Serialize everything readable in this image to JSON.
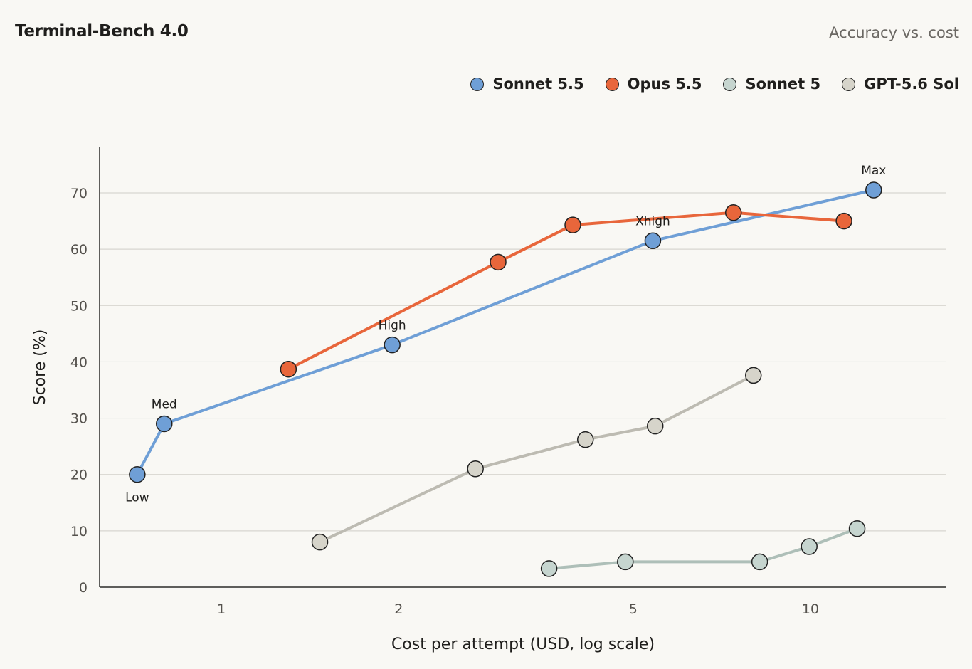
{
  "title": "Terminal-Bench 4.0",
  "subtitle": "Accuracy vs. cost",
  "chart_data": {
    "type": "line",
    "title": "Terminal-Bench 4.0",
    "subtitle": "Accuracy vs. cost",
    "xlabel": "Cost per attempt (USD, log scale)",
    "ylabel": "Score (%)",
    "xscale": "log",
    "xlim": [
      0.55,
      18
    ],
    "ylim": [
      0,
      78
    ],
    "xticks": [
      1,
      2,
      5,
      10
    ],
    "yticks": [
      0,
      10,
      20,
      30,
      40,
      50,
      60,
      70
    ],
    "grid": "horizontal",
    "legend_position": "top-right",
    "series": [
      {
        "name": "Sonnet 5.5",
        "color": "#6f9fd6",
        "points": [
          {
            "x": 0.72,
            "y": 20,
            "label": "Low"
          },
          {
            "x": 0.8,
            "y": 29,
            "label": "Med"
          },
          {
            "x": 1.95,
            "y": 43,
            "label": "High"
          },
          {
            "x": 5.4,
            "y": 61.5,
            "label": "Xhigh"
          },
          {
            "x": 12.8,
            "y": 70.5,
            "label": "Max"
          }
        ]
      },
      {
        "name": "Opus 5.5",
        "color": "#e8663b",
        "points": [
          {
            "x": 1.3,
            "y": 38.7
          },
          {
            "x": 2.95,
            "y": 57.7
          },
          {
            "x": 3.95,
            "y": 64.3
          },
          {
            "x": 7.4,
            "y": 66.5
          },
          {
            "x": 11.4,
            "y": 65
          }
        ]
      },
      {
        "name": "Sonnet 5",
        "color": "#c6d5cf",
        "line_color": "#aebfb8",
        "points": [
          {
            "x": 3.6,
            "y": 3.3
          },
          {
            "x": 4.85,
            "y": 4.5
          },
          {
            "x": 8.2,
            "y": 4.5
          },
          {
            "x": 9.95,
            "y": 7.2
          },
          {
            "x": 12.0,
            "y": 10.4
          }
        ]
      },
      {
        "name": "GPT-5.6 Sol",
        "color": "#d6d4ca",
        "line_color": "#bdbbb2",
        "points": [
          {
            "x": 1.47,
            "y": 8
          },
          {
            "x": 2.7,
            "y": 21
          },
          {
            "x": 4.15,
            "y": 26.2
          },
          {
            "x": 5.45,
            "y": 28.6
          },
          {
            "x": 8.0,
            "y": 37.6
          }
        ]
      }
    ]
  }
}
